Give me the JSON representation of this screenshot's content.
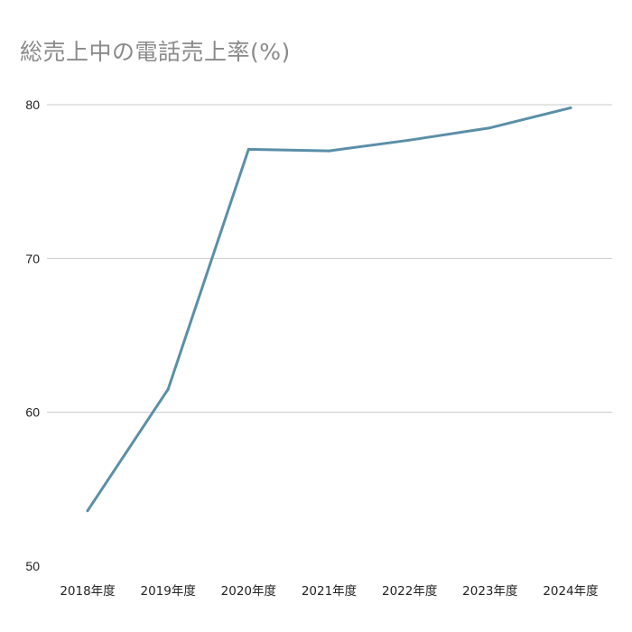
{
  "chart_data": {
    "type": "line",
    "title": "総売上中の電話売上率(%)",
    "xlabel": "",
    "ylabel": "",
    "categories": [
      "2018年度",
      "2019年度",
      "2020年度",
      "2021年度",
      "2022年度",
      "2023年度",
      "2024年度"
    ],
    "series": [
      {
        "values": [
          53.6,
          61.5,
          77.1,
          77.0,
          77.7,
          78.5,
          79.8
        ]
      }
    ],
    "ylim": [
      50,
      80
    ],
    "yticks": [
      "50",
      "60",
      "70",
      "80"
    ],
    "grid": true,
    "legend": "none",
    "line_color": "#5a8fa8",
    "grid_color": "#c8c8c8"
  }
}
